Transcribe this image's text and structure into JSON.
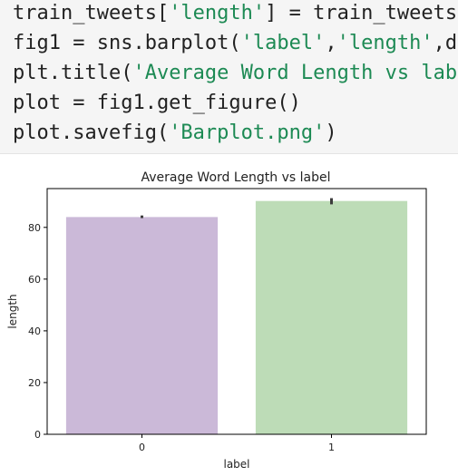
{
  "code": {
    "lines": [
      {
        "before": "train_tweets[",
        "string": "'length'",
        "after": "] = train_tweets["
      },
      {
        "before": "fig1 = sns.barplot(",
        "string": "'label'",
        "mid": ",",
        "string2": "'length'",
        "after": ",da"
      },
      {
        "before": "plt.title(",
        "string": "'Average Word Length vs labe",
        "after": ""
      },
      {
        "before": "plot = fig1.get_figure()",
        "string": "",
        "after": ""
      },
      {
        "before": "plot.savefig(",
        "string": "'Barplot.png'",
        "after": ")"
      }
    ]
  },
  "chart_data": {
    "type": "bar",
    "title": "Average Word Length vs label",
    "xlabel": "label",
    "ylabel": "length",
    "categories": [
      "0",
      "1"
    ],
    "values": [
      84,
      90.2
    ],
    "error_bars": [
      [
        83.6,
        84.6
      ],
      [
        88.9,
        91.3
      ]
    ],
    "colors": [
      "#cbb9d8",
      "#bddcb7"
    ],
    "ylim": [
      0,
      95
    ],
    "yticks": [
      0,
      20,
      40,
      60,
      80
    ],
    "grid": false
  }
}
